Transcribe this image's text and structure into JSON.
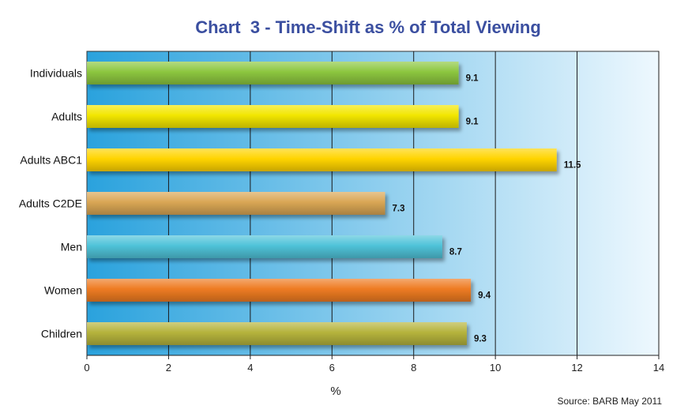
{
  "chart_data": {
    "type": "bar",
    "orientation": "horizontal",
    "title": "Chart  3 - Time-Shift as % of Total Viewing",
    "xlabel": "%",
    "ylabel": "",
    "source": "Source: BARB May 2011",
    "categories": [
      "Individuals",
      "Adults",
      "Adults ABC1",
      "Adults C2DE",
      "Men",
      "Women",
      "Children"
    ],
    "values": [
      9.1,
      9.1,
      11.5,
      7.3,
      8.7,
      9.4,
      9.3
    ],
    "value_labels": [
      "9.1",
      "9.1",
      "11.5",
      "7.3",
      "8.7",
      "9.4",
      "9.3"
    ],
    "bar_colors": [
      "#8cc63f",
      "#f2e600",
      "#ffd400",
      "#d9a654",
      "#4fc3d9",
      "#ee7b22",
      "#b5b33c"
    ],
    "xlim": [
      0,
      14
    ],
    "xticks": [
      0,
      2,
      4,
      6,
      8,
      10,
      12,
      14
    ],
    "grid": true,
    "background_gradient": [
      "#2aa2dd",
      "#eef8fe"
    ],
    "title_color": "#3b4fa0"
  }
}
